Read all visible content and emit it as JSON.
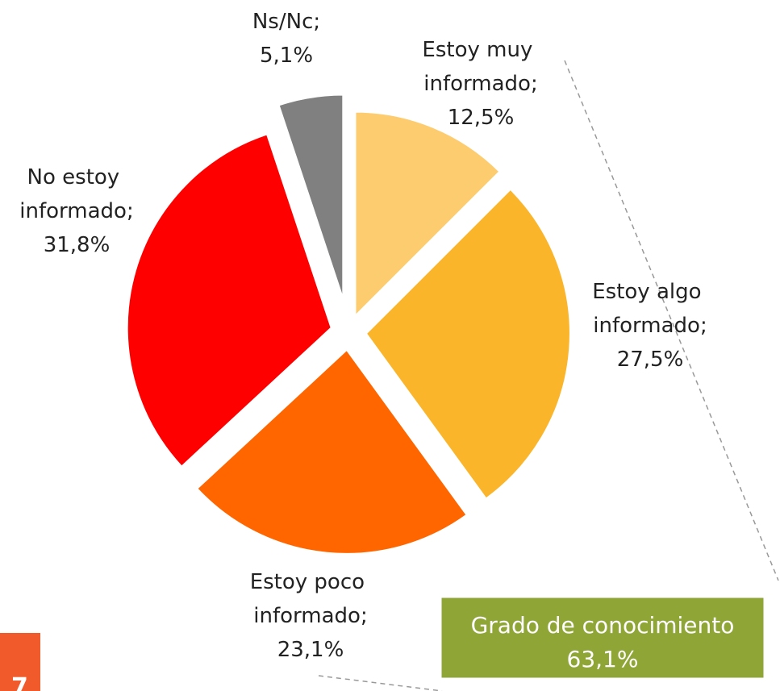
{
  "chart_data": {
    "type": "pie",
    "categories": [
      "Estoy muy informado;",
      "Estoy algo informado;",
      "Estoy poco informado;",
      "No estoy informado;",
      "Ns/Nc;"
    ],
    "values": [
      12.5,
      27.5,
      23.1,
      31.8,
      5.1
    ],
    "value_labels": [
      "12,5%",
      "27,5%",
      "23,1%",
      "31,8%",
      "5,1%"
    ],
    "colors": [
      "#fdcc6e",
      "#fbb52a",
      "#ff6600",
      "#ff0000",
      "#808080"
    ],
    "annotation": {
      "text": "Grado de conocimiento",
      "value": 63.1,
      "value_label": "63,1%"
    }
  },
  "page_number": "7"
}
